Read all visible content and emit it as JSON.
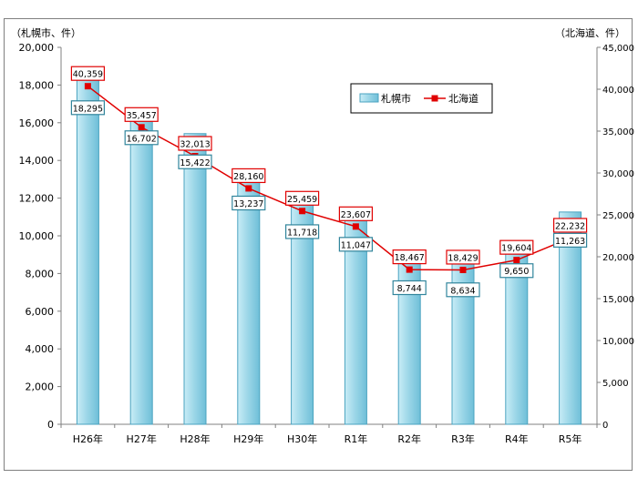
{
  "chart_data": {
    "type": "bar",
    "categories": [
      "H26年",
      "H27年",
      "H28年",
      "H29年",
      "H30年",
      "R1年",
      "R2年",
      "R3年",
      "R4年",
      "R5年"
    ],
    "series": [
      {
        "name": "札幌市",
        "type": "bar",
        "axis": "left",
        "values": [
          18295,
          16702,
          15422,
          13237,
          11718,
          11047,
          8744,
          8634,
          9650,
          11263
        ],
        "labels": [
          "18,295",
          "16,702",
          "15,422",
          "13,237",
          "11,718",
          "11,047",
          "8,744",
          "8,634",
          "9,650",
          "11,263"
        ]
      },
      {
        "name": "北海道",
        "type": "line",
        "axis": "right",
        "values": [
          40359,
          35457,
          32013,
          28160,
          25459,
          23607,
          18467,
          18429,
          19604,
          22232
        ],
        "labels": [
          "40,359",
          "35,457",
          "32,013",
          "28,160",
          "25,459",
          "23,607",
          "18,467",
          "18,429",
          "19,604",
          "22,232"
        ]
      }
    ],
    "ylabel_left": "（札幌市、件）",
    "ylabel_right": "（北海道、件）",
    "ylim_left": [
      0,
      20000
    ],
    "ylim_right": [
      0,
      45000
    ],
    "yticks_left": [
      "0",
      "2,000",
      "4,000",
      "6,000",
      "8,000",
      "10,000",
      "12,000",
      "14,000",
      "16,000",
      "18,000",
      "20,000"
    ],
    "yticks_right": [
      "0",
      "5,000",
      "10,000",
      "15,000",
      "20,000",
      "25,000",
      "30,000",
      "35,000",
      "40,000",
      "45,000"
    ],
    "grid": false,
    "legend_position": "top-right",
    "colors": {
      "bar": "#9dd7e8",
      "bar_edge": "#4aa3c0",
      "line": "#e00000",
      "label_box_bar": "#31859c",
      "label_box_line": "#e00000"
    }
  }
}
